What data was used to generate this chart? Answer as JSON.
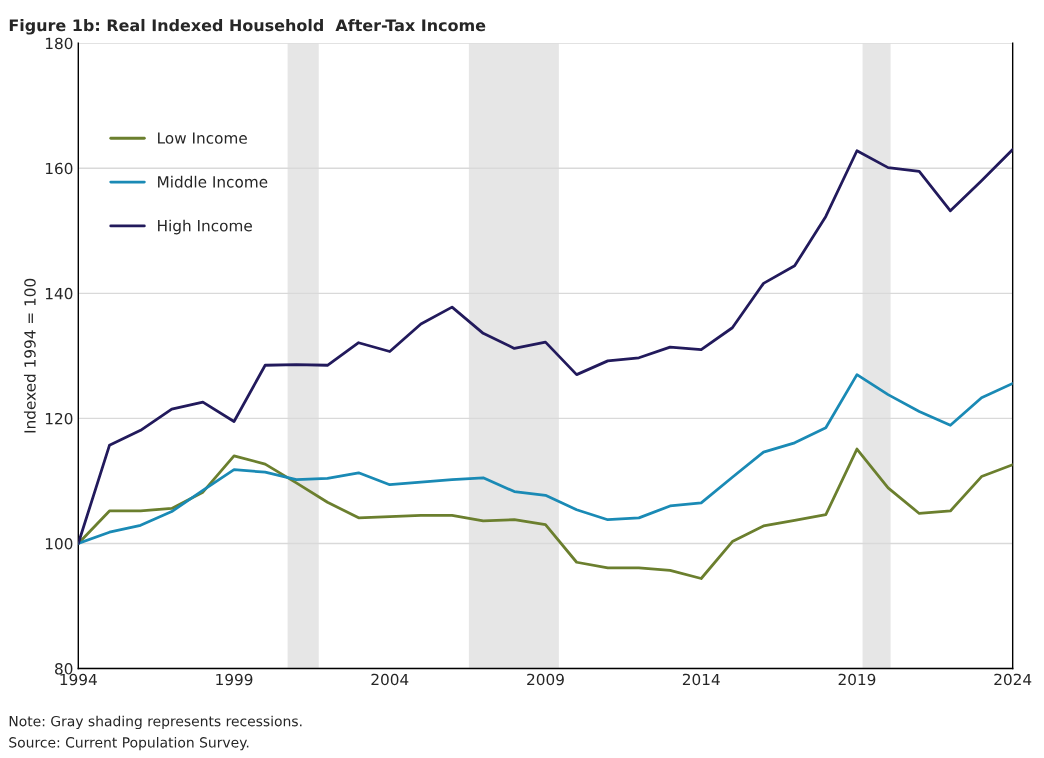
{
  "chart_data": {
    "type": "line",
    "title": "Figure 1b: Real Indexed Household  After-Tax Income",
    "ylabel": "Indexed 1994 = 100",
    "x": [
      1994,
      1995,
      1996,
      1997,
      1998,
      1999,
      2000,
      2001,
      2002,
      2003,
      2004,
      2005,
      2006,
      2007,
      2008,
      2009,
      2010,
      2011,
      2012,
      2013,
      2014,
      2015,
      2016,
      2017,
      2018,
      2019,
      2020,
      2021,
      2022,
      2023,
      2024
    ],
    "series": [
      {
        "name": "Low Income",
        "color": "#6b7f2e",
        "values": [
          100,
          105.2,
          105.2,
          105.6,
          108.2,
          114.0,
          112.7,
          109.7,
          106.6,
          104.1,
          104.3,
          104.5,
          104.5,
          103.6,
          103.8,
          103.0,
          97.0,
          96.1,
          96.1,
          95.7,
          94.4,
          100.3,
          102.8,
          103.7,
          104.6,
          115.1,
          108.9,
          104.8,
          105.2,
          110.7,
          112.6
        ]
      },
      {
        "name": "Middle Income",
        "color": "#1a8ab5",
        "values": [
          100,
          101.8,
          102.9,
          105.1,
          108.5,
          111.8,
          111.4,
          110.2,
          110.4,
          111.3,
          109.4,
          109.8,
          110.2,
          110.5,
          108.3,
          107.7,
          105.4,
          103.8,
          104.1,
          106.0,
          106.5,
          110.6,
          114.6,
          116.1,
          118.5,
          127.0,
          123.8,
          121.1,
          118.9,
          123.3,
          125.6
        ]
      },
      {
        "name": "High Income",
        "color": "#221a5c",
        "values": [
          100,
          115.7,
          118.1,
          121.5,
          122.6,
          119.5,
          128.5,
          128.6,
          128.5,
          132.1,
          130.7,
          135.1,
          137.8,
          133.6,
          131.2,
          132.2,
          127.0,
          129.2,
          129.7,
          131.4,
          131.0,
          134.5,
          141.6,
          144.4,
          152.3,
          162.8,
          160.1,
          159.5,
          153.2,
          158.0,
          163.0
        ]
      }
    ],
    "xlim": [
      1994,
      2024
    ],
    "xticks": [
      1994,
      1999,
      2004,
      2009,
      2014,
      2019,
      2024
    ],
    "ylim": [
      80,
      180
    ],
    "yticks": [
      80,
      100,
      120,
      140,
      160,
      180
    ],
    "bands": [
      {
        "axis": "x",
        "from": 2000.72,
        "to": 2001.72,
        "color": "#e6e6e6"
      },
      {
        "axis": "x",
        "from": 2006.54,
        "to": 2009.43,
        "color": "#e6e6e6"
      },
      {
        "axis": "x",
        "from": 2019.18,
        "to": 2020.08,
        "color": "#e6e6e6"
      }
    ],
    "grid": "y",
    "legend": "top left",
    "line_style": "solid",
    "marker": "none",
    "annotations": [
      "Note: Gray shading represents recessions.",
      "Source: Current Population Survey."
    ]
  }
}
